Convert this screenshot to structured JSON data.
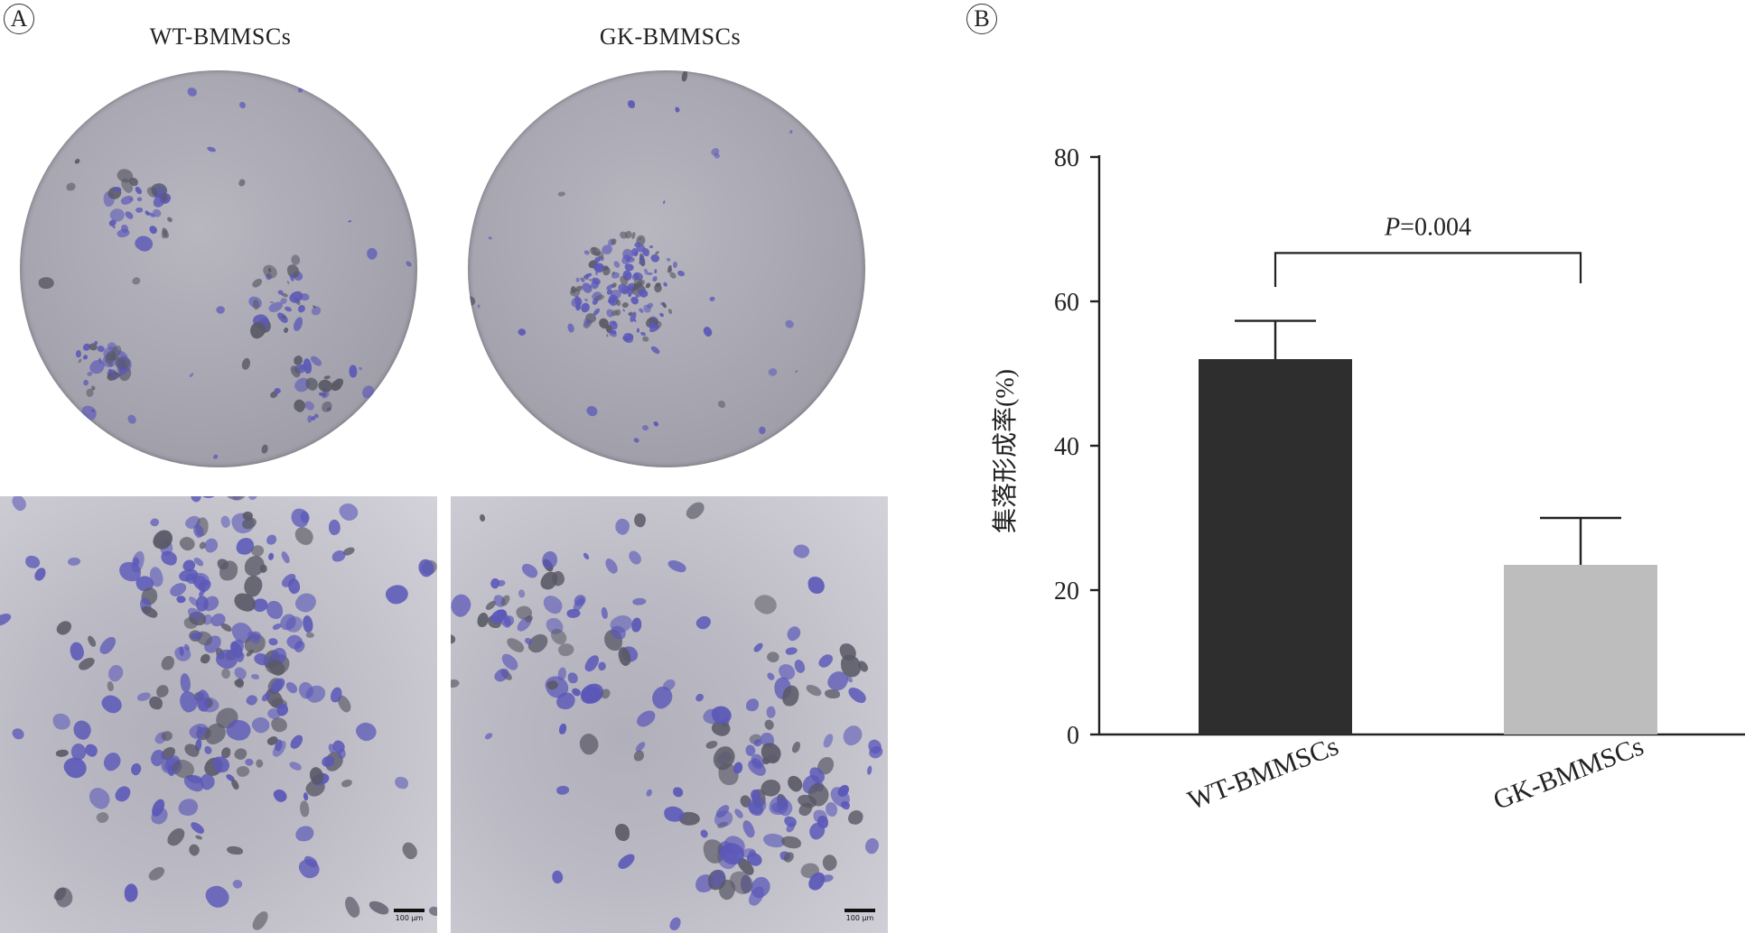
{
  "panels": {
    "a_label": "A",
    "b_label": "B"
  },
  "micrographs": {
    "wt_title": "WT-BMMSCs",
    "gk_title": "GK-BMMSCs",
    "scale_bar": "100 μm"
  },
  "colors": {
    "stain": "#5b58b8",
    "wt_bar": "#2e2e2e",
    "gk_bar": "#bdbdbd",
    "axis": "#222222"
  },
  "chart_data": {
    "type": "bar",
    "categories": [
      "WT-BMMSCs",
      "GK-BMMSCs"
    ],
    "values": [
      52,
      23.5
    ],
    "errors": [
      5.3,
      6.5
    ],
    "ylabel": "集落形成率(%)",
    "yticks": [
      0,
      20,
      40,
      60,
      80
    ],
    "ylim": [
      0,
      80
    ],
    "annotation": {
      "prefix": "P",
      "text": "=0.004"
    }
  }
}
